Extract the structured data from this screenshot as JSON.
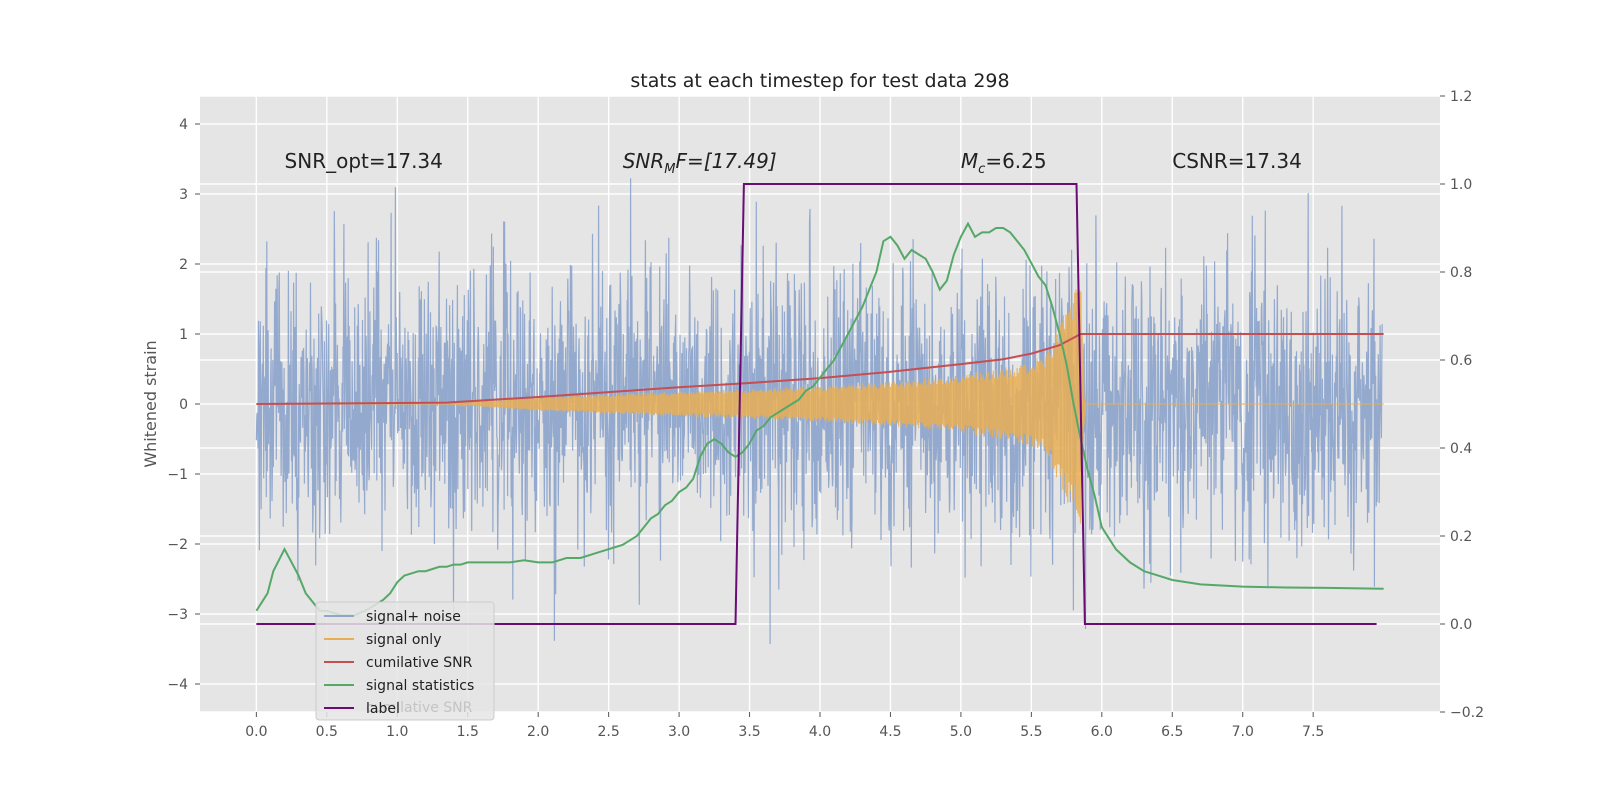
{
  "chart_data": {
    "type": "line",
    "title": "stats at each timestep for test data 298",
    "ylabel": "Whitened strain",
    "xlim": [
      -0.4,
      8.4
    ],
    "ylim": [
      -4.4,
      4.4
    ],
    "y2lim": [
      -0.2,
      1.2
    ],
    "x_ticks": [
      "0.0",
      "0.5",
      "1.0",
      "1.5",
      "2.0",
      "2.5",
      "3.0",
      "3.5",
      "4.0",
      "4.5",
      "5.0",
      "5.5",
      "6.0",
      "6.5",
      "7.0",
      "7.5"
    ],
    "y_ticks": [
      "4",
      "3",
      "2",
      "1",
      "0",
      "−1",
      "−2",
      "−3",
      "−4"
    ],
    "y2_ticks": [
      "1.2",
      "1.0",
      "0.8",
      "0.6",
      "0.4",
      "0.2",
      "0.0",
      "−0.2"
    ],
    "grid": true,
    "legend_position": "lower-left",
    "annotations": [
      {
        "text": "SNR_opt=17.34",
        "x": 0.2,
        "y": 3.2
      },
      {
        "text": "SNR",
        "sub": "M",
        "rest": "F=[17.49]",
        "italic": true,
        "x": 2.6,
        "y": 3.2
      },
      {
        "text": "M",
        "sub": "c",
        "rest": "=6.25",
        "italic": true,
        "x": 5.0,
        "y": 3.2
      },
      {
        "text": "CSNR=17.34",
        "x": 6.5,
        "y": 3.2
      }
    ],
    "legend_ghost_text": "cumilative SNR",
    "series": [
      {
        "name": "signal+ noise",
        "color": "#8fa5cc",
        "axis": "left",
        "style": "noise",
        "x_range": [
          0,
          7.99
        ],
        "sigma": 1.0,
        "ymin_observed": -4.0,
        "ymax_observed": 4.0
      },
      {
        "name": "signal only",
        "color": "#e8ae53",
        "axis": "left",
        "style": "chirp",
        "envelope_x": [
          1.35,
          2.0,
          3.0,
          3.5,
          4.0,
          4.5,
          5.0,
          5.4,
          5.6,
          5.8,
          5.85,
          5.88,
          8.0
        ],
        "envelope_y": [
          0.0,
          0.1,
          0.18,
          0.22,
          0.26,
          0.32,
          0.42,
          0.55,
          0.7,
          1.6,
          2.0,
          0.0,
          0.0
        ]
      },
      {
        "name": "cumilative SNR",
        "color": "#c44e52",
        "axis": "left",
        "x": [
          0,
          1.35,
          2.0,
          2.5,
          3.0,
          3.5,
          4.0,
          4.5,
          5.0,
          5.3,
          5.5,
          5.7,
          5.85,
          8.0
        ],
        "y": [
          0.0,
          0.02,
          0.1,
          0.17,
          0.24,
          0.3,
          0.37,
          0.46,
          0.57,
          0.64,
          0.72,
          0.84,
          1.0,
          1.0
        ]
      },
      {
        "name": "signal statistics",
        "color": "#55a868",
        "axis": "right",
        "x": [
          0,
          0.08,
          0.12,
          0.2,
          0.25,
          0.3,
          0.35,
          0.4,
          0.45,
          0.5,
          0.55,
          0.6,
          0.7,
          0.8,
          0.9,
          0.95,
          1.0,
          1.05,
          1.1,
          1.15,
          1.2,
          1.25,
          1.3,
          1.35,
          1.4,
          1.45,
          1.5,
          1.6,
          1.7,
          1.8,
          1.9,
          2.0,
          2.1,
          2.2,
          2.3,
          2.4,
          2.5,
          2.6,
          2.7,
          2.75,
          2.8,
          2.85,
          2.9,
          2.95,
          3.0,
          3.05,
          3.1,
          3.15,
          3.2,
          3.25,
          3.3,
          3.35,
          3.4,
          3.45,
          3.5,
          3.55,
          3.6,
          3.65,
          3.7,
          3.75,
          3.8,
          3.85,
          3.9,
          3.95,
          4.0,
          4.05,
          4.1,
          4.15,
          4.2,
          4.25,
          4.3,
          4.35,
          4.4,
          4.45,
          4.5,
          4.55,
          4.6,
          4.65,
          4.7,
          4.75,
          4.8,
          4.85,
          4.9,
          4.95,
          5.0,
          5.05,
          5.1,
          5.15,
          5.2,
          5.25,
          5.3,
          5.35,
          5.4,
          5.45,
          5.5,
          5.55,
          5.6,
          5.65,
          5.7,
          5.75,
          5.8,
          5.85,
          5.9,
          5.95,
          6.0,
          6.1,
          6.2,
          6.3,
          6.4,
          6.5,
          6.7,
          7.0,
          7.3,
          7.6,
          8.0
        ],
        "y": [
          0.03,
          0.07,
          0.12,
          0.17,
          0.14,
          0.11,
          0.07,
          0.05,
          0.03,
          0.03,
          0.025,
          0.02,
          0.02,
          0.035,
          0.055,
          0.07,
          0.095,
          0.11,
          0.115,
          0.12,
          0.12,
          0.125,
          0.13,
          0.13,
          0.135,
          0.135,
          0.14,
          0.14,
          0.14,
          0.14,
          0.145,
          0.14,
          0.14,
          0.15,
          0.15,
          0.16,
          0.17,
          0.18,
          0.2,
          0.22,
          0.24,
          0.25,
          0.27,
          0.28,
          0.3,
          0.31,
          0.33,
          0.38,
          0.41,
          0.42,
          0.41,
          0.39,
          0.38,
          0.39,
          0.41,
          0.44,
          0.45,
          0.47,
          0.48,
          0.49,
          0.5,
          0.51,
          0.53,
          0.54,
          0.56,
          0.58,
          0.6,
          0.63,
          0.66,
          0.69,
          0.72,
          0.76,
          0.8,
          0.87,
          0.88,
          0.86,
          0.83,
          0.85,
          0.84,
          0.83,
          0.8,
          0.76,
          0.78,
          0.84,
          0.88,
          0.91,
          0.88,
          0.89,
          0.89,
          0.9,
          0.9,
          0.89,
          0.87,
          0.85,
          0.82,
          0.79,
          0.77,
          0.72,
          0.66,
          0.59,
          0.5,
          0.42,
          0.35,
          0.29,
          0.22,
          0.17,
          0.14,
          0.12,
          0.11,
          0.1,
          0.09,
          0.085,
          0.083,
          0.082,
          0.08
        ]
      },
      {
        "name": "label",
        "color": "#6a0c74",
        "axis": "right",
        "x": [
          0,
          3.4,
          3.46,
          5.82,
          5.88,
          7.95
        ],
        "y": [
          0.0,
          0.0,
          1.0,
          1.0,
          0.0,
          0.0
        ]
      }
    ]
  }
}
